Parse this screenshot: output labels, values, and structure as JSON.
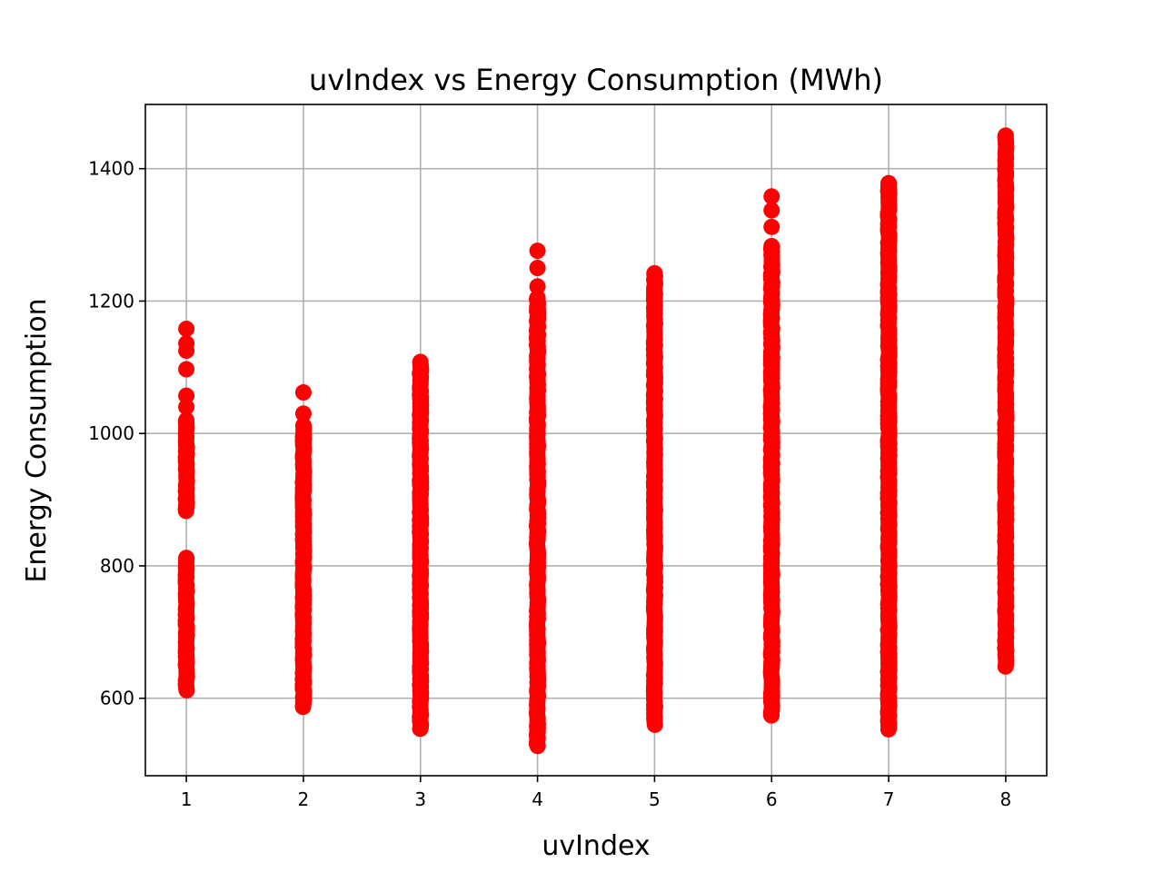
{
  "chart_data": {
    "type": "scatter",
    "title": "uvIndex vs Energy Consumption (MWh)",
    "xlabel": "uvIndex",
    "ylabel": "Energy Consumption",
    "xlim": [
      0.65,
      8.35
    ],
    "ylim": [
      483,
      1497
    ],
    "x_ticks": [
      1,
      2,
      3,
      4,
      5,
      6,
      7,
      8
    ],
    "y_ticks": [
      600,
      800,
      1000,
      1200,
      1400
    ],
    "grid": true,
    "legend": "none",
    "marker_color": "#ff0000",
    "columns": [
      {
        "x": 1,
        "ranges": [
          [
            612,
            812
          ],
          [
            883,
            1020
          ]
        ],
        "points": [
          1040,
          1057,
          1097,
          1125,
          1136,
          1158
        ]
      },
      {
        "x": 2,
        "ranges": [
          [
            587,
            1012
          ]
        ],
        "points": [
          1030,
          1062
        ]
      },
      {
        "x": 3,
        "ranges": [
          [
            554,
            1108
          ]
        ],
        "points": []
      },
      {
        "x": 4,
        "ranges": [
          [
            528,
            1205
          ]
        ],
        "points": [
          1222,
          1250,
          1276
        ]
      },
      {
        "x": 5,
        "ranges": [
          [
            560,
            1242
          ]
        ],
        "points": []
      },
      {
        "x": 6,
        "ranges": [
          [
            574,
            1283
          ]
        ],
        "points": [
          1312,
          1337,
          1358
        ]
      },
      {
        "x": 7,
        "ranges": [
          [
            553,
            1378
          ]
        ],
        "points": []
      },
      {
        "x": 8,
        "ranges": [
          [
            648,
            1450
          ]
        ],
        "points": []
      }
    ]
  }
}
